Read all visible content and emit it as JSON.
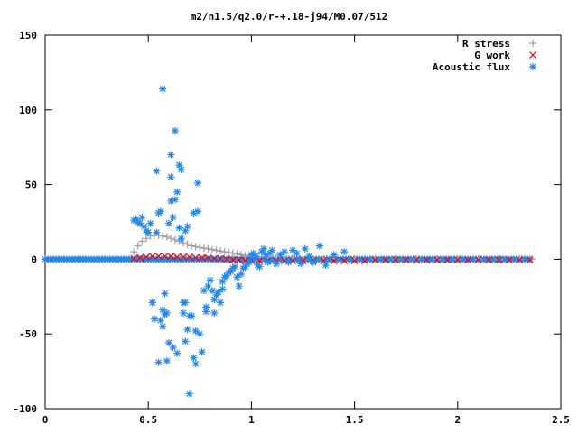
{
  "chart_data": {
    "type": "scatter",
    "title": "m2/n1.5/q2.0/r-+.18-j94/M0.07/512",
    "xlabel": "",
    "ylabel": "",
    "xlim": [
      0,
      2.5
    ],
    "ylim": [
      -100,
      150
    ],
    "x_ticks": [
      0,
      0.5,
      1,
      1.5,
      2,
      2.5
    ],
    "x_tick_labels": [
      "0",
      "0.5",
      "1",
      "1.5",
      "2",
      "2.5"
    ],
    "y_ticks": [
      -100,
      -50,
      0,
      50,
      100,
      150
    ],
    "y_tick_labels": [
      "-100",
      "-50",
      "0",
      "50",
      "100",
      "150"
    ],
    "grid": false,
    "legend": "top-right",
    "series": [
      {
        "name": "R stress",
        "marker": "plus",
        "color": "#a0a0a0",
        "x": [
          0.43,
          0.45,
          0.47,
          0.49,
          0.51,
          0.53,
          0.55,
          0.57,
          0.59,
          0.61,
          0.63,
          0.65,
          0.67,
          0.69,
          0.71,
          0.73,
          0.75,
          0.77,
          0.79,
          0.81,
          0.83,
          0.85,
          0.87,
          0.89,
          0.91,
          0.93,
          0.95,
          0.97,
          0.99,
          1.01,
          1.03,
          1.05,
          1.08,
          1.12,
          1.16,
          1.2,
          1.25,
          1.3,
          1.35,
          1.4,
          1.5,
          1.6,
          1.7,
          1.8,
          1.9,
          2.0,
          2.1,
          2.2,
          2.3,
          2.36
        ],
        "y": [
          5,
          9,
          12,
          14,
          15.5,
          16,
          16,
          15.5,
          15,
          14,
          13,
          12,
          11,
          10,
          9,
          8.5,
          8,
          7.5,
          7,
          6.5,
          6,
          5.5,
          5,
          4.5,
          4,
          3.5,
          3,
          2.5,
          2,
          2,
          1.5,
          1.5,
          1,
          1,
          1,
          1,
          0.5,
          0.5,
          0.5,
          0.5,
          0.5,
          0.3,
          0.3,
          0.3,
          0.2,
          0.2,
          0.2,
          0.1,
          0.1,
          0.1
        ]
      },
      {
        "name": "G work",
        "marker": "cross",
        "color": "#ff0000",
        "x": [
          0.43,
          0.46,
          0.49,
          0.52,
          0.55,
          0.58,
          0.61,
          0.64,
          0.67,
          0.7,
          0.73,
          0.76,
          0.79,
          0.82,
          0.85,
          0.88,
          0.91,
          0.94,
          0.97,
          1.0,
          1.04,
          1.08,
          1.12,
          1.16,
          1.2,
          1.25,
          1.3,
          1.35,
          1.4,
          1.45,
          1.5,
          1.55,
          1.6,
          1.65,
          1.7,
          1.75,
          1.8,
          1.85,
          1.9,
          1.95,
          2.0,
          2.05,
          2.1,
          2.15,
          2.2,
          2.25,
          2.3,
          2.35
        ],
        "y": [
          0.5,
          1,
          1.5,
          2,
          2,
          2,
          2,
          1.5,
          1.5,
          1.5,
          1,
          1,
          1,
          0.5,
          0.5,
          0,
          -0.5,
          -0.5,
          -1,
          -1,
          -1,
          -1,
          -1,
          -1,
          -1,
          -1,
          -1,
          -1,
          -1,
          -1,
          -1,
          -1,
          -0.5,
          -0.5,
          -0.5,
          -0.5,
          -0.5,
          -0.5,
          -0.5,
          -0.5,
          -0.5,
          -0.5,
          -0.5,
          -0.5,
          -0.5,
          -0.5,
          -0.5,
          -0.5
        ]
      },
      {
        "name": "Acoustic flux",
        "marker": "star",
        "color": "#2288ee",
        "x": [
          0.43,
          0.44,
          0.45,
          0.46,
          0.47,
          0.48,
          0.49,
          0.5,
          0.51,
          0.52,
          0.53,
          0.54,
          0.55,
          0.56,
          0.57,
          0.58,
          0.59,
          0.6,
          0.61,
          0.62,
          0.63,
          0.64,
          0.65,
          0.66,
          0.67,
          0.68,
          0.69,
          0.7,
          0.71,
          0.72,
          0.73,
          0.74,
          0.75,
          0.76,
          0.77,
          0.78,
          0.79,
          0.8,
          0.81,
          0.82,
          0.83,
          0.84,
          0.85,
          0.86,
          0.87,
          0.88,
          0.89,
          0.9,
          0.91,
          0.92,
          0.93,
          0.94,
          0.95,
          0.96,
          0.97,
          0.98,
          0.99,
          1.0,
          1.01,
          1.02,
          1.03,
          1.04,
          1.05,
          1.06,
          1.07,
          1.08,
          1.09,
          1.1,
          1.12,
          1.14,
          1.16,
          1.18,
          1.2,
          1.22,
          1.24,
          1.26,
          1.28,
          1.3,
          1.33,
          1.36,
          1.4,
          1.45,
          0.54,
          0.56,
          0.58,
          0.6,
          0.62,
          0.64,
          0.66,
          0.68,
          0.7,
          0.72,
          0.52,
          0.55,
          0.57,
          0.61,
          0.65,
          0.69,
          0.73,
          0.57,
          0.61,
          0.68,
          0.71,
          0.59,
          0.63,
          0.67,
          0.74,
          0.78,
          0.82,
          0.86
        ],
        "y": [
          26,
          27,
          25,
          24,
          28,
          22,
          19,
          18,
          24,
          -29,
          -40,
          59,
          31,
          -41,
          114,
          -37,
          -68,
          -56,
          39,
          -59,
          86,
          -63,
          63,
          60,
          -36,
          -55,
          22,
          -90,
          -38,
          -66,
          -48,
          32,
          -50,
          -62,
          -21,
          -32,
          -18,
          -14,
          -21,
          -36,
          -24,
          -22,
          -29,
          -15,
          -12,
          -11,
          -9,
          -8,
          -6,
          -5,
          -12,
          -18,
          -10,
          -6,
          -5,
          -3,
          -2,
          3,
          4,
          2,
          -4,
          -5,
          5,
          7,
          3,
          -2,
          4,
          6,
          -3,
          3,
          5,
          -2,
          6,
          4,
          -3,
          7,
          2,
          -2,
          9,
          -4,
          3,
          5,
          18,
          32,
          -23,
          24,
          28,
          45,
          14,
          19,
          -38,
          31,
          -29,
          -69,
          -34,
          55,
          21,
          -47,
          -70,
          -45,
          70,
          -29,
          -38,
          -36,
          40,
          -29,
          51,
          -35,
          -27,
          -20
        ]
      }
    ],
    "baseline_band": {
      "series": "Acoustic flux",
      "x_start": 0,
      "x_end": 2.36,
      "y": 0
    }
  }
}
